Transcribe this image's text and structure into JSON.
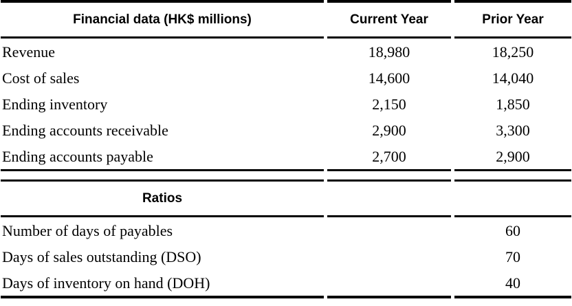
{
  "financial": {
    "headers": [
      "Financial data (HK$ millions)",
      "Current Year",
      "Prior Year"
    ],
    "rows": [
      {
        "label": "Revenue",
        "current": "18,980",
        "prior": "18,250"
      },
      {
        "label": "Cost of sales",
        "current": "14,600",
        "prior": "14,040"
      },
      {
        "label": "Ending inventory",
        "current": "2,150",
        "prior": "1,850"
      },
      {
        "label": "Ending accounts receivable",
        "current": "2,900",
        "prior": "3,300"
      },
      {
        "label": "Ending accounts payable",
        "current": "2,700",
        "prior": "2,900"
      }
    ]
  },
  "ratios": {
    "header": "Ratios",
    "rows": [
      {
        "label": "Number of days of payables",
        "value": "60"
      },
      {
        "label": "Days of sales outstanding (DSO)",
        "value": "70"
      },
      {
        "label": "Days of inventory on hand (DOH)",
        "value": "40"
      }
    ]
  },
  "colors": {
    "text": "#000000",
    "rule": "#000000",
    "background": "#ffffff"
  }
}
